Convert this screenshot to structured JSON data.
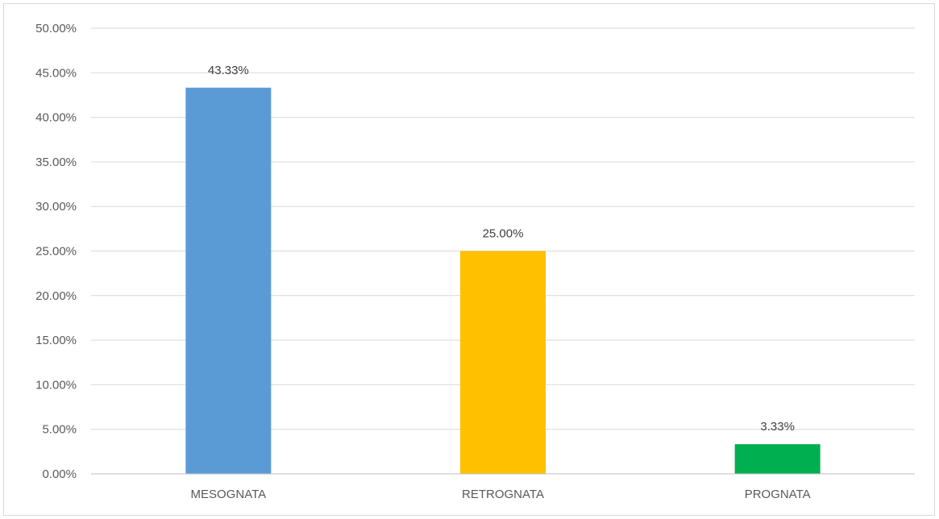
{
  "chart_data": {
    "type": "bar",
    "categories": [
      "MESOGNATA",
      "RETROGNATA",
      "PROGNATA"
    ],
    "values": [
      43.33,
      25.0,
      3.33
    ],
    "data_labels": [
      "43.33%",
      "25.00%",
      "3.33%"
    ],
    "y_ticks": [
      "0.00%",
      "5.00%",
      "10.00%",
      "15.00%",
      "20.00%",
      "25.00%",
      "30.00%",
      "35.00%",
      "40.00%",
      "45.00%",
      "50.00%"
    ],
    "ylim": [
      0,
      50
    ],
    "grid": true,
    "legend": "none",
    "colors": [
      "#5b9bd5",
      "#ffc000",
      "#00b050"
    ],
    "gridline_color": "#d9d9d9",
    "axis_color": "#bfbfbf"
  }
}
